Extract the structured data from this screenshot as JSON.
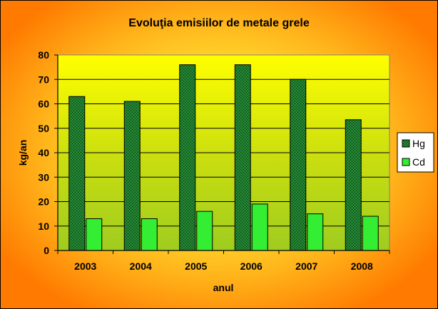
{
  "chart_data": {
    "type": "bar",
    "title": "Evoluţia emisiilor de metale grele",
    "xlabel": "anul",
    "ylabel": "kg/an",
    "categories": [
      "2003",
      "2004",
      "2005",
      "2006",
      "2007",
      "2008"
    ],
    "series": [
      {
        "name": "Hg",
        "values": [
          63,
          61,
          76,
          76,
          70,
          53.5
        ],
        "color": "#1f7a2e"
      },
      {
        "name": "Cd",
        "values": [
          13,
          13,
          16,
          19,
          15,
          14
        ],
        "color": "#33ee33"
      }
    ],
    "ylim": [
      0,
      80
    ],
    "yticks": [
      "0",
      "10",
      "20",
      "30",
      "40",
      "50",
      "60",
      "70",
      "80"
    ],
    "grid": true,
    "legend": "right",
    "plot_background": "yellow-green gradient",
    "chart_background": "radial yellow-orange gradient"
  }
}
